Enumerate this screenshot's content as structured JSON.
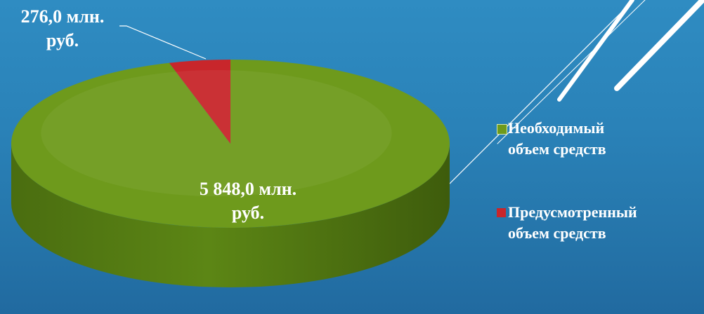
{
  "chart_data": {
    "type": "pie",
    "series": [
      {
        "name": "Необходимый объем средств",
        "value": 5848.0,
        "color": "#6e9a1c"
      },
      {
        "name": "Предусмотренный объем средств",
        "value": 276.0,
        "color": "#c8262b"
      }
    ],
    "data_labels": [
      {
        "line1": "276,0 млн.",
        "line2": "руб."
      },
      {
        "line1": "5 848,0 млн.",
        "line2": "руб."
      }
    ],
    "legend": {
      "placement": "right",
      "items": [
        {
          "line1": "Необходимый",
          "line2": "объем средств",
          "color": "#6e9a1c"
        },
        {
          "line1": "Предусмотренный",
          "line2": "объем средств",
          "color": "#c8262b"
        }
      ]
    }
  },
  "colors": {
    "background": "#2a82b8",
    "text": "#ffffff"
  }
}
